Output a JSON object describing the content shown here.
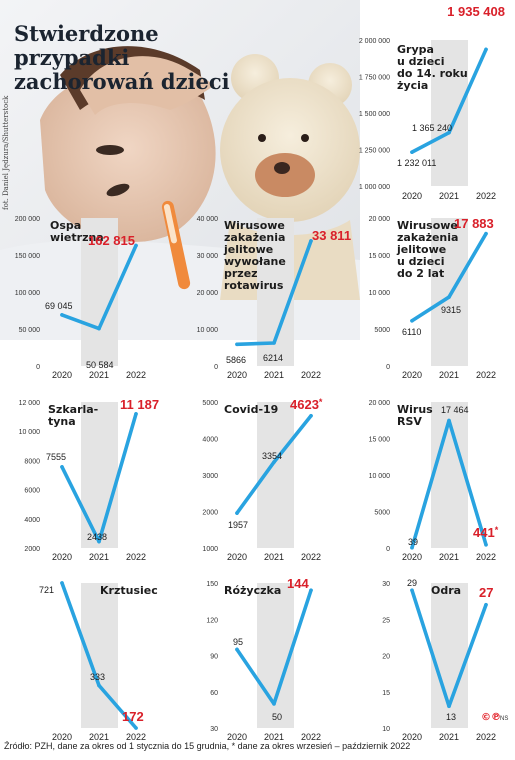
{
  "headline": "Stwierdzone przypadki zachorowań dzieci",
  "credit": "fot. Daniel Jędzura/Shutterstock",
  "footer": "Źródło: PZH, dane za okres od 1 stycznia do 15 grudnia, * dane za okres wrzesień – październik 2022",
  "logo": "©℗",
  "logo_ns": "NS",
  "colors": {
    "line": "#29a3e0",
    "highlight": "#d9202a",
    "band": "#e4e4e4",
    "text": "#1c1c1c"
  },
  "chart_data": [
    {
      "type": "line",
      "title": "Grypa u dzieci do 14. roku życia",
      "categories": [
        "2020",
        "2021",
        "2022"
      ],
      "values": [
        1232011,
        1365240,
        1935408
      ],
      "value_labels": [
        "1 232 011",
        "1 365 240",
        "1 935 408"
      ],
      "asterisk": false,
      "ylim": [
        1000000,
        2000000
      ],
      "yticks": [
        1000000,
        1250000,
        1500000,
        1750000,
        2000000
      ],
      "ytick_labels": [
        "1 000 000",
        "1 250 000",
        "1 500 000",
        "1 750 000",
        "2 000 000"
      ]
    },
    {
      "type": "line",
      "title": "Ospa wietrzna",
      "categories": [
        "2020",
        "2021",
        "2022"
      ],
      "values": [
        69045,
        50584,
        162815
      ],
      "value_labels": [
        "69 045",
        "50 584",
        "162 815"
      ],
      "asterisk": false,
      "ylim": [
        0,
        200000
      ],
      "yticks": [
        0,
        50000,
        100000,
        150000,
        200000
      ],
      "ytick_labels": [
        "0",
        "50 000",
        "100 000",
        "150 000",
        "200 000"
      ]
    },
    {
      "type": "line",
      "title": "Wirusowe zakażenia jelitowe wywołane przez rotawirus",
      "categories": [
        "2020",
        "2021",
        "2022"
      ],
      "values": [
        5866,
        6214,
        33811
      ],
      "value_labels": [
        "5866",
        "6214",
        "33 811"
      ],
      "asterisk": false,
      "ylim": [
        0,
        40000
      ],
      "yticks": [
        0,
        10000,
        20000,
        30000,
        40000
      ],
      "ytick_labels": [
        "0",
        "10 000",
        "20 000",
        "30 000",
        "40 000"
      ]
    },
    {
      "type": "line",
      "title": "Wirusowe zakażenia jelitowe u dzieci do 2 lat",
      "categories": [
        "2020",
        "2021",
        "2022"
      ],
      "values": [
        6110,
        9315,
        17883
      ],
      "value_labels": [
        "6110",
        "9315",
        "17 883"
      ],
      "asterisk": false,
      "ylim": [
        0,
        20000
      ],
      "yticks": [
        0,
        5000,
        10000,
        15000,
        20000
      ],
      "ytick_labels": [
        "0",
        "5000",
        "10 000",
        "15 000",
        "20 000"
      ]
    },
    {
      "type": "line",
      "title": "Szkarlatyna",
      "categories": [
        "2020",
        "2021",
        "2022"
      ],
      "values": [
        7555,
        2438,
        11187
      ],
      "value_labels": [
        "7555",
        "2438",
        "11 187"
      ],
      "asterisk": false,
      "ylim": [
        2000,
        12000
      ],
      "yticks": [
        2000,
        4000,
        6000,
        8000,
        10000,
        12000
      ],
      "ytick_labels": [
        "2000",
        "4000",
        "6000",
        "8000",
        "10 000",
        "12 000"
      ]
    },
    {
      "type": "line",
      "title": "Covid-19",
      "categories": [
        "2020",
        "2021",
        "2022"
      ],
      "values": [
        1957,
        3354,
        4623
      ],
      "value_labels": [
        "1957",
        "3354",
        "4623"
      ],
      "asterisk": true,
      "ylim": [
        1000,
        5000
      ],
      "yticks": [
        1000,
        2000,
        3000,
        4000,
        5000
      ],
      "ytick_labels": [
        "1000",
        "2000",
        "3000",
        "4000",
        "5000"
      ]
    },
    {
      "type": "line",
      "title": "Wirus RSV",
      "categories": [
        "2020",
        "2021",
        "2022"
      ],
      "values": [
        39,
        17464,
        441
      ],
      "value_labels": [
        "39",
        "17 464",
        "441"
      ],
      "asterisk": true,
      "ylim": [
        0,
        20000
      ],
      "yticks": [
        0,
        5000,
        10000,
        15000,
        20000
      ],
      "ytick_labels": [
        "0",
        "5000",
        "10 000",
        "15 000",
        "20 000"
      ]
    },
    {
      "type": "line",
      "title": "Krztusiec",
      "categories": [
        "2020",
        "2021",
        "2022"
      ],
      "values": [
        721,
        333,
        172
      ],
      "value_labels": [
        "721",
        "333",
        "172"
      ],
      "asterisk": false,
      "ylim": null,
      "yticks": [],
      "ytick_labels": []
    },
    {
      "type": "line",
      "title": "Różyczka",
      "categories": [
        "2020",
        "2021",
        "2022"
      ],
      "values": [
        95,
        50,
        144
      ],
      "value_labels": [
        "95",
        "50",
        "144"
      ],
      "asterisk": false,
      "ylim": [
        30,
        150
      ],
      "yticks": [
        30,
        60,
        90,
        120,
        150
      ],
      "ytick_labels": [
        "30",
        "60",
        "90",
        "120",
        "150"
      ]
    },
    {
      "type": "line",
      "title": "Odra",
      "categories": [
        "2020",
        "2021",
        "2022"
      ],
      "values": [
        29,
        13,
        27
      ],
      "value_labels": [
        "29",
        "13",
        "27"
      ],
      "asterisk": false,
      "ylim": [
        10,
        30
      ],
      "yticks": [
        10,
        15,
        20,
        25,
        30
      ],
      "ytick_labels": [
        "10",
        "15",
        "20",
        "25",
        "30"
      ]
    }
  ]
}
